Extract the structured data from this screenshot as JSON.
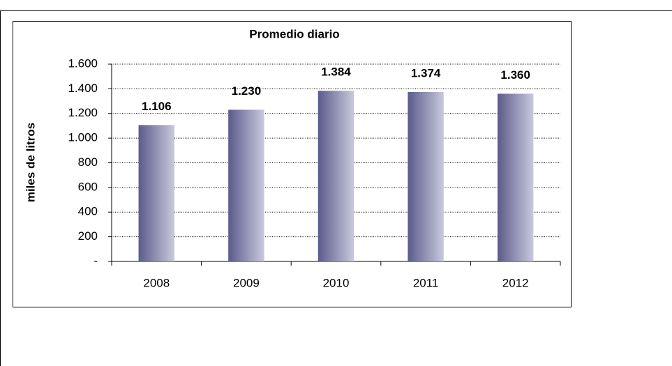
{
  "chart_data": {
    "type": "bar",
    "title": "Promedio diario",
    "y_label": "miles de litros",
    "categories": [
      "2008",
      "2009",
      "2010",
      "2011",
      "2012"
    ],
    "values": [
      1106,
      1230,
      1384,
      1374,
      1360
    ],
    "value_labels": [
      "1.106",
      "1.230",
      "1.384",
      "1.374",
      "1.360"
    ],
    "color": [
      "#5b5b8c",
      "#c9c9dd"
    ],
    "ylim": [
      0,
      1600
    ],
    "yticks": [
      {
        "value": 0,
        "label": "-"
      },
      200,
      400,
      600,
      800,
      {
        "value": 1000,
        "label": "1.000"
      },
      {
        "value": 1200,
        "label": "1.200"
      },
      {
        "value": 1400,
        "label": "1.400"
      },
      {
        "value": 1600,
        "label": "1.600"
      }
    ],
    "grid": true
  }
}
